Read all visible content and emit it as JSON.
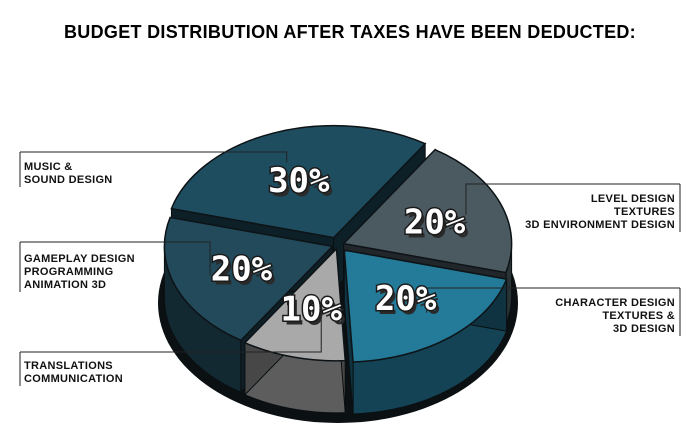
{
  "title": "BUDGET DISTRIBUTION AFTER TAXES HAVE BEEN DEDUCTED:",
  "chart_data": {
    "type": "pie",
    "title": "BUDGET DISTRIBUTION AFTER TAXES HAVE BEEN DEDUCTED:",
    "slices": [
      {
        "name": "MUSIC & SOUND DESIGN",
        "lines": [
          "MUSIC &",
          "SOUND DESIGN"
        ],
        "value": 30,
        "label": "30%",
        "color": "#1f4d60"
      },
      {
        "name": "LEVEL DESIGN TEXTURES 3D ENVIRONMENT DESIGN",
        "lines": [
          "LEVEL DESIGN",
          "TEXTURES",
          "3D ENVIRONMENT DESIGN"
        ],
        "value": 20,
        "label": "20%",
        "color": "#4b5a61"
      },
      {
        "name": "CHARACTER DESIGN TEXTURES & 3D DESIGN",
        "lines": [
          "CHARACTER DESIGN",
          "TEXTURES &",
          "3D DESIGN"
        ],
        "value": 20,
        "label": "20%",
        "color": "#237a99"
      },
      {
        "name": "TRANSLATIONS COMMUNICATION",
        "lines": [
          "TRANSLATIONS",
          "COMMUNICATION"
        ],
        "value": 10,
        "label": "10%",
        "color": "#a9a9a9"
      },
      {
        "name": "GAMEPLAY DESIGN PROGRAMMING ANIMATION 3D",
        "lines": [
          "GAMEPLAY DESIGN",
          "PROGRAMMING",
          "ANIMATION 3D"
        ],
        "value": 20,
        "label": "20%",
        "color": "#224a5b"
      }
    ],
    "unit": "%",
    "legend": "callouts"
  }
}
